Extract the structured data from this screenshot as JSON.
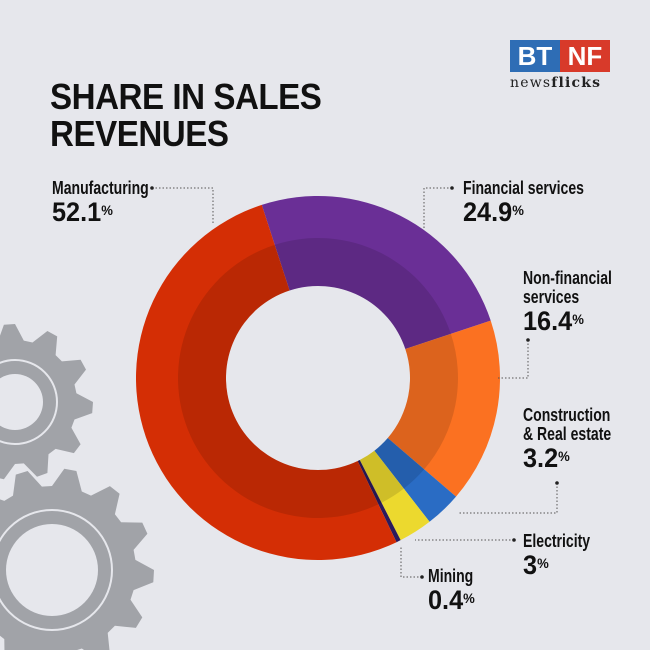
{
  "title_line1": "SHARE IN SALES",
  "title_line2": "REVENUES",
  "logo": {
    "left": "BT",
    "right": "NF",
    "sub_regular": "news",
    "sub_bold": "flicks",
    "left_color": "#2e6db5",
    "right_color": "#d83a2a"
  },
  "chart_data": {
    "type": "pie",
    "variant": "donut",
    "title": "SHARE IN SALES REVENUES",
    "unit": "%",
    "slices": [
      {
        "label": "Financial services",
        "value": 24.9,
        "display": "24.9",
        "color": "#6a2f96"
      },
      {
        "label": "Non-financial services",
        "value": 16.4,
        "display": "16.4",
        "color": "#fb7121"
      },
      {
        "label": "Construction & Real estate",
        "value": 3.2,
        "display": "3.2",
        "color": "#2a6cc4"
      },
      {
        "label": "Electricity",
        "value": 3,
        "display": "3",
        "color": "#ecd92e"
      },
      {
        "label": "Mining",
        "value": 0.4,
        "display": "0.4",
        "color": "#2b1a5c"
      },
      {
        "label": "Manufacturing",
        "value": 52.1,
        "display": "52.1",
        "color": "#d42e05"
      }
    ]
  },
  "labels": {
    "financial": {
      "name": "Financial services",
      "value": "24.9"
    },
    "nonfinancial": {
      "name1": "Non-financial",
      "name2": "services",
      "value": "16.4"
    },
    "construction": {
      "name1": "Construction",
      "name2": "& Real estate",
      "value": "3.2"
    },
    "electricity": {
      "name": "Electricity",
      "value": "3"
    },
    "mining": {
      "name": "Mining",
      "value": "0.4"
    },
    "manufacturing": {
      "name": "Manufacturing",
      "value": "52.1"
    },
    "percent": "%"
  },
  "decor": {
    "gear_color": "#a1a3a8"
  }
}
